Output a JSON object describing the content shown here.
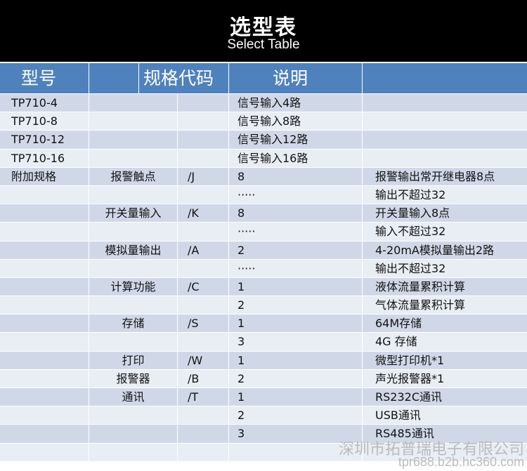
{
  "header": {
    "title": "选型表",
    "subtitle": "Select Table"
  },
  "columns": [
    "型号",
    "规格代码",
    "说明",
    ""
  ],
  "rows": [
    [
      "TP710-4",
      "",
      "",
      "信号输入4路",
      ""
    ],
    [
      "TP710-8",
      "",
      "",
      "信号输入8路",
      ""
    ],
    [
      "TP710-12",
      "",
      "",
      "信号输入12路",
      ""
    ],
    [
      "TP710-16",
      "",
      "",
      "信号输入16路",
      ""
    ],
    [
      "附加规格",
      "报警触点",
      "/J",
      "8",
      "报警输出常开继电器8点"
    ],
    [
      "",
      "",
      "",
      "·····",
      "输出不超过32"
    ],
    [
      "",
      "开关量输入",
      "/K",
      "8",
      "开关量输入8点"
    ],
    [
      "",
      "",
      "",
      "·····",
      "输入不超过32"
    ],
    [
      "",
      "模拟量输出",
      "/A",
      "2",
      "4-20mA模拟量输出2路"
    ],
    [
      "",
      "",
      "",
      "·····",
      "输出不超过32"
    ],
    [
      "",
      "计算功能",
      "/C",
      "1",
      "液体流量累积计算"
    ],
    [
      "",
      "",
      "",
      "2",
      "气体流量累积计算"
    ],
    [
      "",
      "存储",
      "/S",
      "1",
      "64M存储"
    ],
    [
      "",
      "",
      "",
      "3",
      "4G 存储"
    ],
    [
      "",
      "打印",
      "/W",
      "1",
      "微型打印机*1"
    ],
    [
      "",
      "报警器",
      "/B",
      "2",
      "声光报警器*1"
    ],
    [
      "",
      "通讯",
      "/T",
      "1",
      "RS232C通讯"
    ],
    [
      "",
      "",
      "",
      "2",
      "USB通讯"
    ],
    [
      "",
      "",
      "",
      "3",
      "RS485通讯"
    ],
    [
      "",
      "",
      "",
      "",
      ""
    ]
  ],
  "watermark": {
    "company": "深圳市拓普瑞电子有限公司",
    "url": "tpr688.b2b.hc360.com"
  },
  "colors": {
    "header": "#4f81bd",
    "row_odd": "#d0d8e8",
    "row_even": "#e9edf4"
  }
}
